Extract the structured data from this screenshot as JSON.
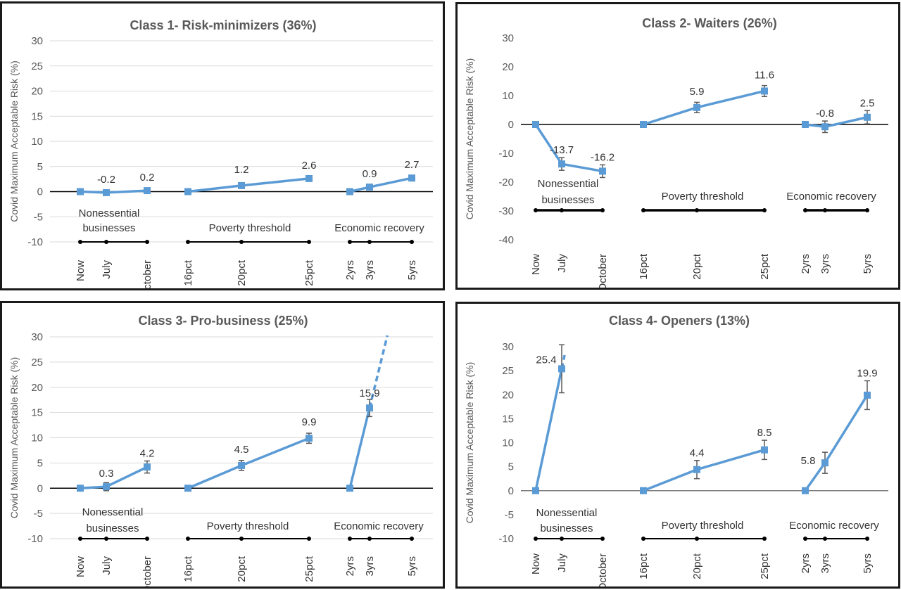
{
  "chart_data": [
    {
      "type": "line",
      "title": "Class 1- Risk-minimizers  (36%)",
      "ylabel": "Covid Maximum Acceptable Risk (%)",
      "ylim": [
        -10,
        30
      ],
      "yticks": [
        -10,
        -5,
        0,
        5,
        10,
        15,
        20,
        25,
        30
      ],
      "grid": true,
      "groups": [
        {
          "name": "Nonessential businesses",
          "categories": [
            "Now",
            "July",
            "October"
          ],
          "values": [
            0,
            -0.2,
            0.2
          ],
          "labels": [
            "",
            "-0.2",
            "0.2"
          ]
        },
        {
          "name": "Poverty threshold",
          "categories": [
            "16pct",
            "20pct",
            "25pct"
          ],
          "values": [
            0,
            1.2,
            2.6
          ],
          "labels": [
            "",
            "1.2",
            "2.6"
          ]
        },
        {
          "name": "Economic recovery",
          "categories": [
            "2yrs",
            "3yrs",
            "5yrs"
          ],
          "values": [
            0,
            0.9,
            2.7
          ],
          "labels": [
            "",
            "0.9",
            "2.7"
          ]
        }
      ]
    },
    {
      "type": "line",
      "title": "Class 2- Waiters (26%)",
      "ylabel": "Covid Maximum Acceptable Risk (%)",
      "ylim": [
        -40,
        30
      ],
      "yticks": [
        -40,
        -30,
        -20,
        -10,
        0,
        10,
        20,
        30
      ],
      "grid": false,
      "groups": [
        {
          "name": "Nonessential businesses",
          "categories": [
            "Now",
            "July",
            "October"
          ],
          "values": [
            0,
            -13.7,
            -16.2
          ],
          "labels": [
            "",
            "-13.7",
            "-16.2"
          ]
        },
        {
          "name": "Poverty threshold",
          "categories": [
            "16pct",
            "20pct",
            "25pct"
          ],
          "values": [
            0,
            5.9,
            11.6
          ],
          "labels": [
            "",
            "5.9",
            "11.6"
          ]
        },
        {
          "name": "Economic recovery",
          "categories": [
            "2yrs",
            "3yrs",
            "5yrs"
          ],
          "values": [
            0,
            -0.8,
            2.5
          ],
          "labels": [
            "",
            "-0.8",
            "2.5"
          ]
        }
      ]
    },
    {
      "type": "line",
      "title": "Class 3- Pro-business (25%)",
      "ylabel": "Covid Maximum Acceptable Risk (%)",
      "ylim": [
        -10,
        30
      ],
      "yticks": [
        -10,
        -5,
        0,
        5,
        10,
        15,
        20,
        25,
        30
      ],
      "grid": true,
      "groups": [
        {
          "name": "Nonessential businesses",
          "categories": [
            "Now",
            "July",
            "October"
          ],
          "values": [
            0,
            0.3,
            4.2
          ],
          "labels": [
            "",
            "0.3",
            "4.2"
          ]
        },
        {
          "name": "Poverty threshold",
          "categories": [
            "16pct",
            "20pct",
            "25pct"
          ],
          "values": [
            0,
            4.5,
            9.9
          ],
          "labels": [
            "",
            "4.5",
            "9.9"
          ]
        },
        {
          "name": "Economic recovery",
          "categories": [
            "2yrs",
            "3yrs",
            "5yrs"
          ],
          "values": [
            0,
            15.9,
            null
          ],
          "labels": [
            "",
            "15.9",
            ""
          ],
          "offscale_after": 1
        }
      ]
    },
    {
      "type": "line",
      "title": "Class 4- Openers (13%)",
      "ylabel": "Covid Maximum Acceptable Risk (%)",
      "ylim": [
        -10,
        30
      ],
      "yticks": [
        -10,
        -5,
        0,
        5,
        10,
        15,
        20,
        25,
        30
      ],
      "grid": false,
      "groups": [
        {
          "name": "Nonessential businesses",
          "categories": [
            "Now",
            "July",
            "October"
          ],
          "values": [
            0,
            25.4,
            null
          ],
          "labels": [
            "",
            "25.4",
            ""
          ],
          "offscale_after": 1
        },
        {
          "name": "Poverty threshold",
          "categories": [
            "16pct",
            "20pct",
            "25pct"
          ],
          "values": [
            0,
            4.4,
            8.5
          ],
          "labels": [
            "",
            "4.4",
            "8.5"
          ]
        },
        {
          "name": "Economic recovery",
          "categories": [
            "2yrs",
            "3yrs",
            "5yrs"
          ],
          "values": [
            0,
            5.8,
            19.9
          ],
          "labels": [
            "",
            "5.8",
            "19.9"
          ]
        }
      ]
    }
  ],
  "colors": {
    "series": "#5b9bd5",
    "axis": "#000000",
    "grid": "#d9d9d9",
    "error": "#595959"
  }
}
